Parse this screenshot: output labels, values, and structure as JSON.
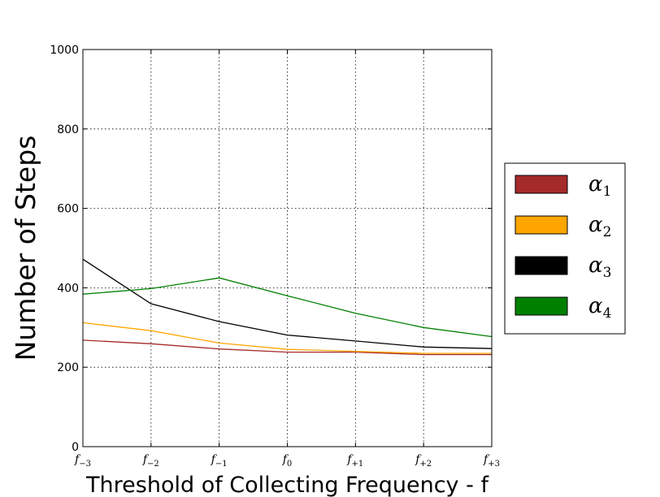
{
  "chart_data": {
    "type": "line",
    "xlabel": "Threshold of Collecting Frequency - f",
    "ylabel": "Number of Steps",
    "ylim": [
      0,
      1000
    ],
    "yticks": [
      "0",
      "200",
      "400",
      "600",
      "800",
      "1000"
    ],
    "y_tick_values": [
      0,
      200,
      400,
      600,
      800,
      1000
    ],
    "x": [
      {
        "base": "f",
        "sub": "−3"
      },
      {
        "base": "f",
        "sub": "−2"
      },
      {
        "base": "f",
        "sub": "−1"
      },
      {
        "base": "f",
        "sub": "0"
      },
      {
        "base": "f",
        "sub": "+1"
      },
      {
        "base": "f",
        "sub": "+2"
      },
      {
        "base": "f",
        "sub": "+3"
      }
    ],
    "grid": true,
    "legend_position": "right",
    "series": [
      {
        "name": "α",
        "name_sub": "1",
        "color": "#a52a2a",
        "values": [
          268,
          259,
          246,
          238,
          238,
          232,
          232
        ]
      },
      {
        "name": "α",
        "name_sub": "2",
        "color": "#ffa500",
        "values": [
          312,
          292,
          261,
          245,
          240,
          235,
          235
        ]
      },
      {
        "name": "α",
        "name_sub": "3",
        "color": "#000000",
        "values": [
          472,
          360,
          315,
          281,
          266,
          251,
          247
        ]
      },
      {
        "name": "α",
        "name_sub": "4",
        "color": "#008000",
        "values": [
          384,
          398,
          425,
          380,
          336,
          300,
          277
        ]
      }
    ]
  }
}
